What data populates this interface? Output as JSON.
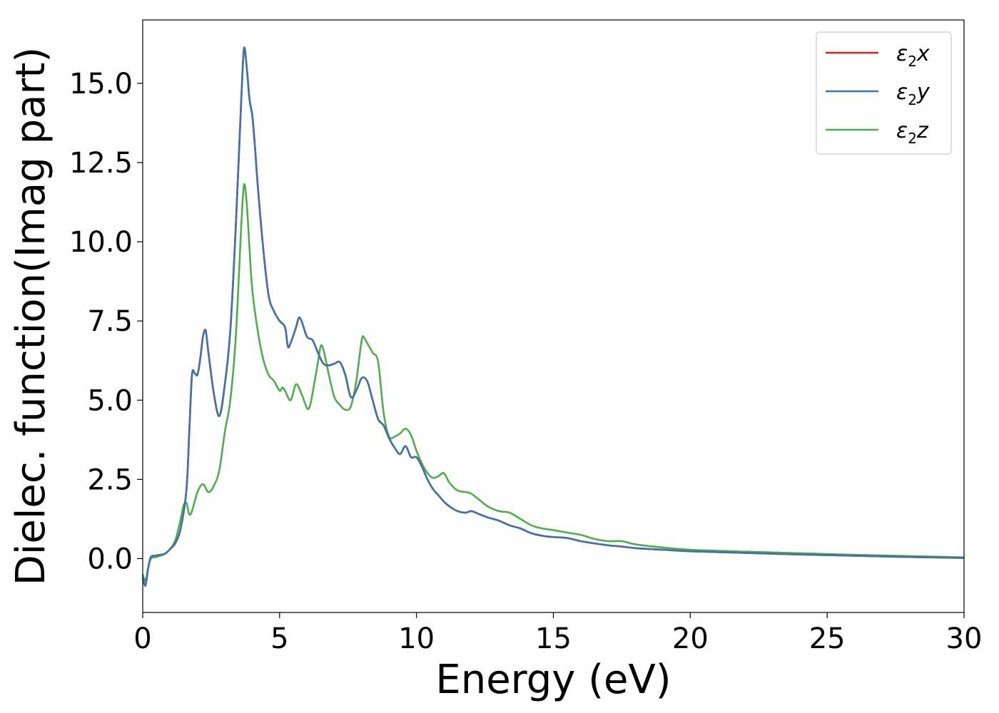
{
  "chart_data": {
    "type": "line",
    "title": "",
    "xlabel": "Energy (eV)",
    "ylabel": "Dielec. function(Imag part)",
    "xlim": [
      0,
      30
    ],
    "ylim": [
      -1.7,
      17.0
    ],
    "xticks": [
      0,
      5,
      10,
      15,
      20,
      25,
      30
    ],
    "xtick_labels": [
      "0",
      "5",
      "10",
      "15",
      "20",
      "25",
      "30"
    ],
    "yticks": [
      0.0,
      2.5,
      5.0,
      7.5,
      10.0,
      12.5,
      15.0
    ],
    "ytick_labels": [
      "0.0",
      "2.5",
      "5.0",
      "7.5",
      "10.0",
      "12.5",
      "15.0"
    ],
    "grid": false,
    "legend_position": "top-right",
    "series": [
      {
        "name": "ε2x",
        "legend_base": "ε",
        "legend_sub": "2",
        "legend_var": "x",
        "color": "#e41a1c",
        "x": [
          0,
          0.1,
          0.2,
          0.3,
          0.5,
          0.8,
          1.0,
          1.2,
          1.4,
          1.6,
          1.7,
          1.8,
          1.9,
          2.0,
          2.1,
          2.2,
          2.3,
          2.4,
          2.6,
          2.8,
          3.0,
          3.2,
          3.4,
          3.6,
          3.7,
          3.8,
          3.9,
          4.0,
          4.1,
          4.2,
          4.4,
          4.6,
          4.8,
          5.0,
          5.2,
          5.3,
          5.4,
          5.6,
          5.7,
          5.8,
          6.0,
          6.2,
          6.4,
          6.6,
          6.8,
          7.0,
          7.2,
          7.4,
          7.6,
          7.8,
          8.0,
          8.2,
          8.4,
          8.6,
          8.8,
          9.0,
          9.2,
          9.4,
          9.6,
          9.8,
          10.0,
          10.2,
          10.4,
          10.6,
          10.8,
          11.0,
          11.2,
          11.5,
          11.8,
          12.0,
          12.3,
          12.6,
          13.0,
          13.4,
          13.8,
          14.2,
          14.6,
          15.0,
          15.5,
          16.0,
          16.5,
          17.0,
          17.5,
          18.0,
          19.0,
          20.0,
          22.0,
          24.0,
          26.0,
          28.0,
          30.0
        ],
        "y": [
          -0.6,
          -0.85,
          -0.3,
          0.05,
          0.1,
          0.15,
          0.3,
          0.5,
          1.0,
          2.2,
          4.0,
          5.8,
          5.85,
          5.8,
          6.3,
          7.0,
          7.2,
          6.5,
          5.2,
          4.5,
          5.5,
          7.2,
          10.5,
          14.5,
          16.1,
          15.5,
          14.5,
          14.0,
          13.0,
          11.8,
          9.8,
          8.3,
          7.8,
          7.5,
          7.3,
          6.7,
          6.8,
          7.3,
          7.6,
          7.5,
          7.0,
          6.9,
          6.5,
          6.15,
          6.1,
          6.15,
          6.2,
          5.8,
          5.1,
          5.3,
          5.7,
          5.6,
          5.0,
          4.4,
          4.2,
          3.8,
          3.5,
          3.3,
          3.55,
          3.2,
          3.2,
          2.9,
          2.5,
          2.2,
          2.0,
          1.8,
          1.65,
          1.5,
          1.45,
          1.5,
          1.4,
          1.3,
          1.2,
          1.05,
          0.95,
          0.8,
          0.72,
          0.68,
          0.65,
          0.55,
          0.48,
          0.42,
          0.38,
          0.33,
          0.28,
          0.23,
          0.18,
          0.13,
          0.09,
          0.05,
          0.02
        ]
      },
      {
        "name": "ε2y",
        "legend_base": "ε",
        "legend_sub": "2",
        "legend_var": "y",
        "color": "#3f73ad",
        "x": [
          0,
          0.1,
          0.2,
          0.3,
          0.5,
          0.8,
          1.0,
          1.2,
          1.4,
          1.6,
          1.7,
          1.8,
          1.9,
          2.0,
          2.1,
          2.2,
          2.3,
          2.4,
          2.6,
          2.8,
          3.0,
          3.2,
          3.4,
          3.6,
          3.7,
          3.8,
          3.9,
          4.0,
          4.1,
          4.2,
          4.4,
          4.6,
          4.8,
          5.0,
          5.2,
          5.3,
          5.4,
          5.6,
          5.7,
          5.8,
          6.0,
          6.2,
          6.4,
          6.6,
          6.8,
          7.0,
          7.2,
          7.4,
          7.6,
          7.8,
          8.0,
          8.2,
          8.4,
          8.6,
          8.8,
          9.0,
          9.2,
          9.4,
          9.6,
          9.8,
          10.0,
          10.2,
          10.4,
          10.6,
          10.8,
          11.0,
          11.2,
          11.5,
          11.8,
          12.0,
          12.3,
          12.6,
          13.0,
          13.4,
          13.8,
          14.2,
          14.6,
          15.0,
          15.5,
          16.0,
          16.5,
          17.0,
          17.5,
          18.0,
          19.0,
          20.0,
          22.0,
          24.0,
          26.0,
          28.0,
          30.0
        ],
        "y": [
          -0.6,
          -0.85,
          -0.3,
          0.05,
          0.1,
          0.15,
          0.3,
          0.5,
          1.0,
          2.2,
          4.0,
          5.8,
          5.85,
          5.8,
          6.3,
          7.0,
          7.2,
          6.5,
          5.2,
          4.5,
          5.5,
          7.2,
          10.5,
          14.5,
          16.1,
          15.5,
          14.5,
          14.0,
          13.0,
          11.8,
          9.8,
          8.3,
          7.8,
          7.5,
          7.3,
          6.7,
          6.8,
          7.3,
          7.6,
          7.5,
          7.0,
          6.9,
          6.5,
          6.15,
          6.1,
          6.15,
          6.2,
          5.8,
          5.1,
          5.3,
          5.7,
          5.6,
          5.0,
          4.4,
          4.2,
          3.8,
          3.5,
          3.3,
          3.55,
          3.2,
          3.2,
          2.9,
          2.5,
          2.2,
          2.0,
          1.8,
          1.65,
          1.5,
          1.45,
          1.5,
          1.4,
          1.3,
          1.2,
          1.05,
          0.95,
          0.8,
          0.72,
          0.68,
          0.65,
          0.55,
          0.48,
          0.42,
          0.38,
          0.33,
          0.28,
          0.23,
          0.18,
          0.13,
          0.09,
          0.05,
          0.02
        ]
      },
      {
        "name": "ε2z",
        "legend_base": "ε",
        "legend_sub": "2",
        "legend_var": "z",
        "color": "#4daf4a",
        "x": [
          0,
          0.1,
          0.2,
          0.3,
          0.5,
          0.8,
          1.0,
          1.2,
          1.4,
          1.5,
          1.6,
          1.7,
          1.8,
          2.0,
          2.2,
          2.4,
          2.6,
          2.8,
          3.0,
          3.2,
          3.4,
          3.6,
          3.7,
          3.8,
          3.9,
          4.0,
          4.2,
          4.4,
          4.6,
          4.8,
          5.0,
          5.1,
          5.2,
          5.4,
          5.6,
          5.8,
          6.0,
          6.1,
          6.2,
          6.4,
          6.5,
          6.6,
          6.8,
          7.0,
          7.2,
          7.4,
          7.6,
          7.8,
          8.0,
          8.1,
          8.2,
          8.4,
          8.6,
          8.8,
          9.0,
          9.2,
          9.4,
          9.6,
          9.8,
          10.0,
          10.2,
          10.4,
          10.6,
          10.8,
          11.0,
          11.2,
          11.5,
          11.8,
          12.0,
          12.3,
          12.6,
          13.0,
          13.4,
          13.8,
          14.2,
          14.6,
          15.0,
          15.5,
          16.0,
          16.5,
          17.0,
          17.5,
          18.0,
          19.0,
          20.0,
          22.0,
          24.0,
          26.0,
          28.0,
          30.0
        ],
        "y": [
          -0.5,
          -0.7,
          -0.3,
          0.0,
          0.05,
          0.15,
          0.3,
          0.6,
          1.3,
          1.7,
          1.75,
          1.4,
          1.5,
          2.1,
          2.35,
          2.1,
          2.3,
          2.8,
          4.0,
          5.0,
          7.0,
          10.5,
          11.8,
          11.2,
          9.8,
          8.5,
          7.2,
          6.3,
          5.8,
          5.6,
          5.3,
          5.4,
          5.3,
          5.0,
          5.5,
          5.2,
          4.75,
          4.8,
          5.2,
          6.2,
          6.7,
          6.6,
          5.8,
          5.1,
          4.85,
          4.7,
          4.8,
          5.6,
          6.9,
          6.95,
          6.8,
          6.5,
          6.2,
          4.6,
          3.85,
          3.85,
          3.95,
          4.1,
          3.9,
          3.4,
          3.0,
          2.7,
          2.55,
          2.6,
          2.7,
          2.4,
          2.15,
          2.1,
          2.05,
          1.85,
          1.65,
          1.5,
          1.45,
          1.25,
          1.05,
          0.95,
          0.9,
          0.82,
          0.75,
          0.62,
          0.55,
          0.55,
          0.45,
          0.35,
          0.28,
          0.22,
          0.17,
          0.12,
          0.08,
          0.04
        ]
      }
    ]
  }
}
